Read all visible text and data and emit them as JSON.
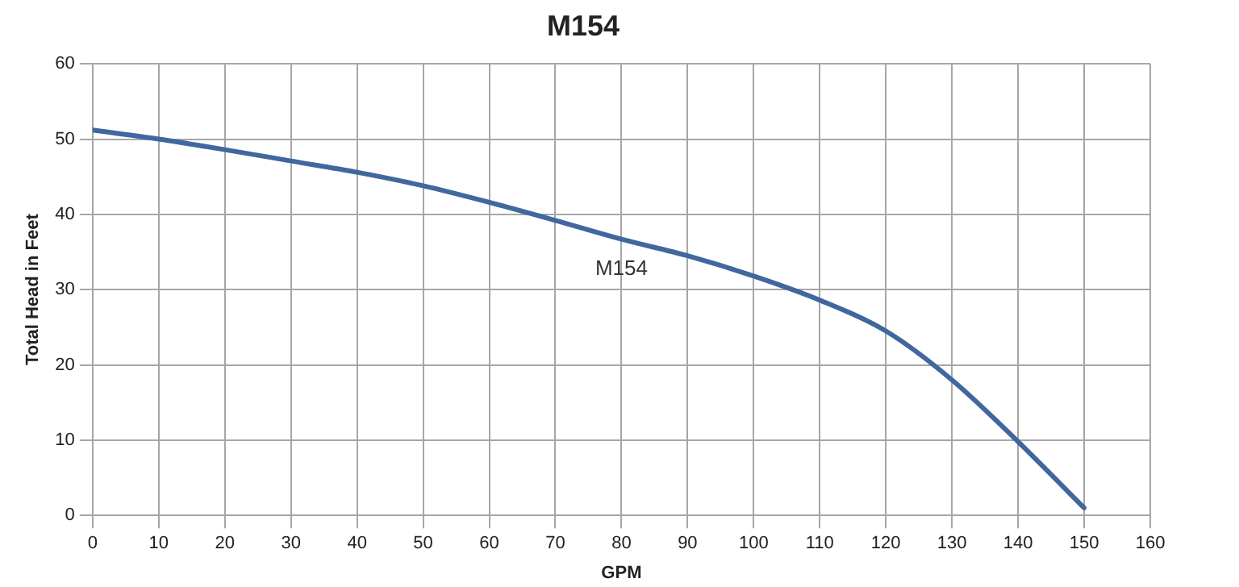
{
  "chart_data": {
    "type": "line",
    "title": "M154",
    "xlabel": "GPM",
    "ylabel": "Total Head in Feet",
    "x": [
      0,
      10,
      20,
      30,
      40,
      50,
      60,
      70,
      80,
      90,
      100,
      110,
      120,
      130,
      140,
      150
    ],
    "series": [
      {
        "name": "M154",
        "color": "#41679e",
        "values": [
          51.2,
          50,
          48.6,
          47.1,
          45.6,
          43.8,
          41.6,
          39.2,
          36.7,
          34.5,
          31.8,
          28.6,
          24.5,
          18,
          9.8,
          1
        ]
      }
    ],
    "xlim": [
      0,
      160
    ],
    "xticks": [
      0,
      10,
      20,
      30,
      40,
      50,
      60,
      70,
      80,
      90,
      100,
      110,
      120,
      130,
      140,
      150,
      160
    ],
    "ylim": [
      0,
      60
    ],
    "yticks": [
      0,
      10,
      20,
      30,
      40,
      50,
      60
    ],
    "grid": true,
    "legend": false,
    "marker": "none",
    "line_style": "solid"
  }
}
